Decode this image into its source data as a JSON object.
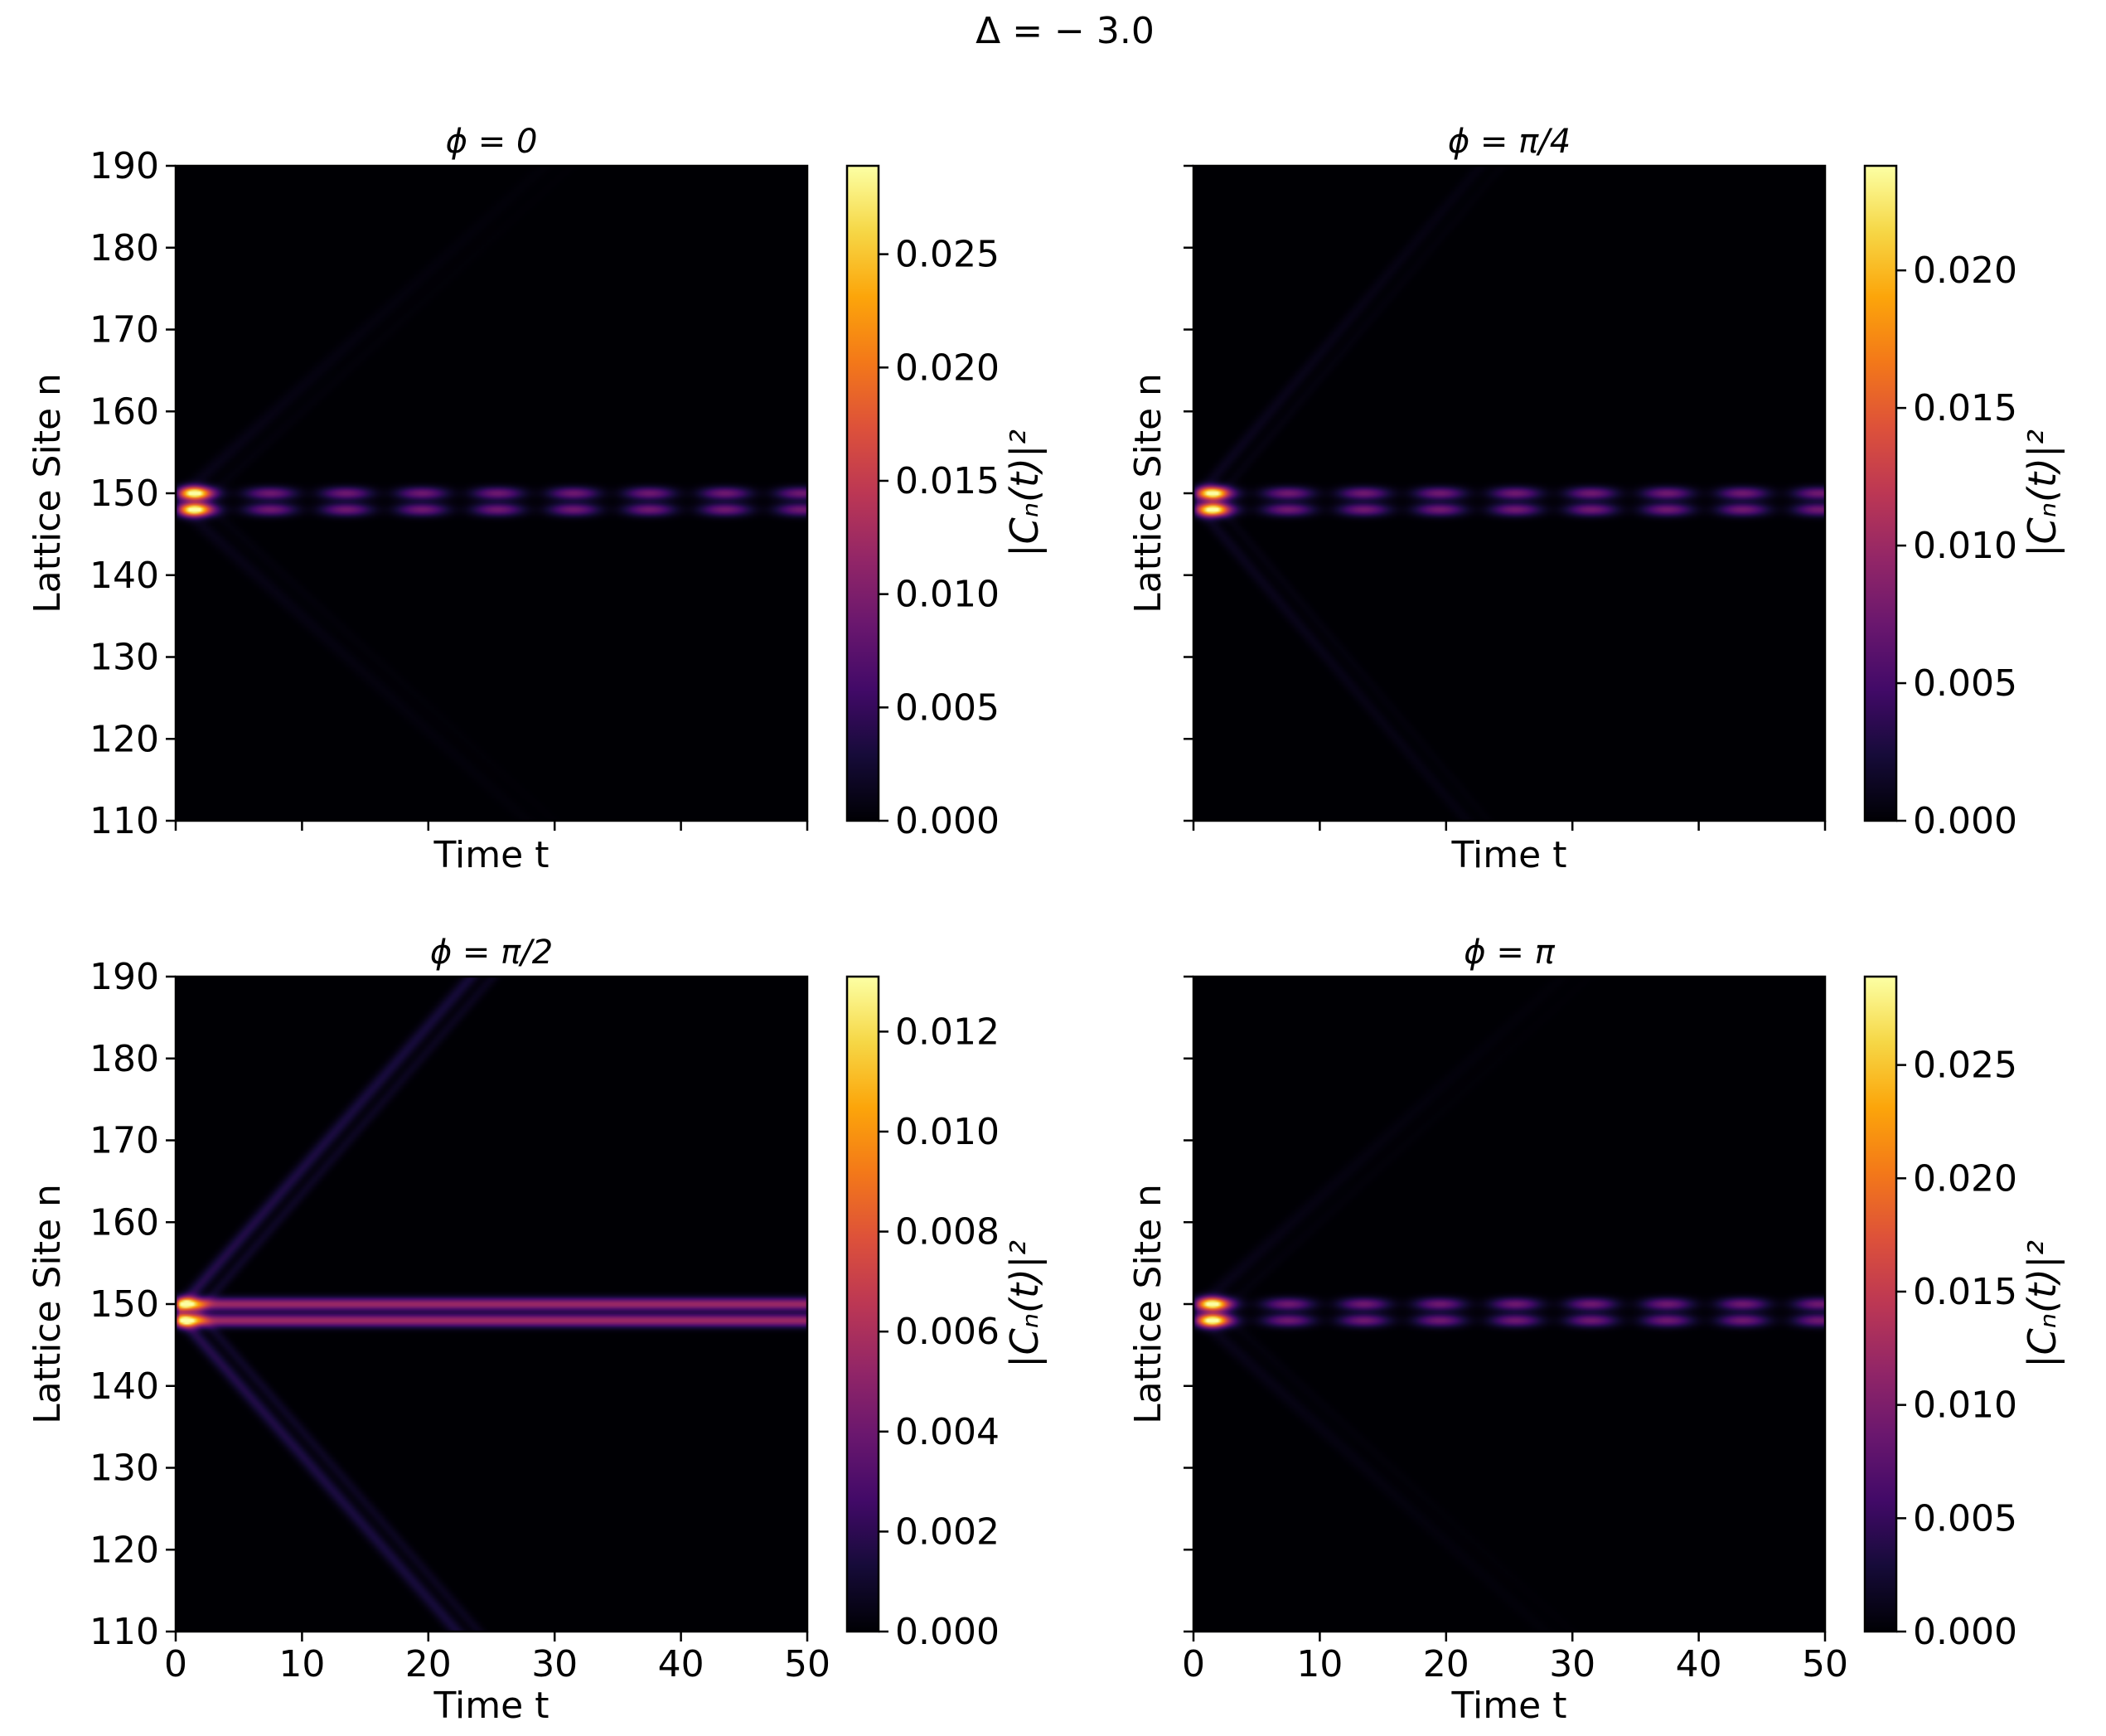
{
  "figure": {
    "suptitle": "Δ = − 3.0"
  },
  "chart_data": [
    {
      "type": "heatmap",
      "title": "ϕ = 0",
      "xlabel": "Time t",
      "ylabel": "Lattice Site n",
      "colorbar_label": "|Cₙ(t)|²",
      "xlim": [
        0,
        50
      ],
      "ylim": [
        110,
        190
      ],
      "xticks": [
        0,
        10,
        20,
        30,
        40,
        50
      ],
      "yticks": [
        110,
        120,
        130,
        140,
        150,
        160,
        170,
        180,
        190
      ],
      "show_xticklabels": false,
      "show_yticklabels": true,
      "vmin": 0,
      "vmax": 0.0289,
      "colorbar_ticks": [
        0.0,
        0.005,
        0.01,
        0.015,
        0.02,
        0.025
      ],
      "colorbar_ticklabels": [
        "0.000",
        "0.005",
        "0.010",
        "0.015",
        "0.020",
        "0.025"
      ],
      "bands": [
        {
          "site": 150,
          "level": 0.009
        },
        {
          "site": 148,
          "level": 0.009
        }
      ],
      "peak": {
        "t": 1.5,
        "level": 0.0285
      },
      "oscillation_period_t": 6,
      "cone": {
        "speed_sites_per_t": 1.4,
        "level": 0.0012,
        "fade_t": 18
      },
      "colorscale": "inferno"
    },
    {
      "type": "heatmap",
      "title": "ϕ = π/4",
      "xlabel": "Time t",
      "ylabel": "Lattice Site n",
      "colorbar_label": "|Cₙ(t)|²",
      "xlim": [
        0,
        50
      ],
      "ylim": [
        110,
        190
      ],
      "xticks": [
        0,
        10,
        20,
        30,
        40,
        50
      ],
      "yticks": [
        110,
        120,
        130,
        140,
        150,
        160,
        170,
        180,
        190
      ],
      "show_xticklabels": false,
      "show_yticklabels": false,
      "vmin": 0,
      "vmax": 0.0238,
      "colorbar_ticks": [
        0.0,
        0.005,
        0.01,
        0.015,
        0.02
      ],
      "colorbar_ticklabels": [
        "0.000",
        "0.005",
        "0.010",
        "0.015",
        "0.020"
      ],
      "bands": [
        {
          "site": 150,
          "level": 0.0075
        },
        {
          "site": 148,
          "level": 0.0075
        }
      ],
      "peak": {
        "t": 1.5,
        "level": 0.023
      },
      "oscillation_period_t": 6,
      "cone": {
        "speed_sites_per_t": 1.8,
        "level": 0.0012,
        "fade_t": 25
      },
      "colorscale": "inferno"
    },
    {
      "type": "heatmap",
      "title": "ϕ = π/2",
      "xlabel": "Time t",
      "ylabel": "Lattice Site n",
      "colorbar_label": "|Cₙ(t)|²",
      "xlim": [
        0,
        50
      ],
      "ylim": [
        110,
        190
      ],
      "xticks": [
        0,
        10,
        20,
        30,
        40,
        50
      ],
      "yticks": [
        110,
        120,
        130,
        140,
        150,
        160,
        170,
        180,
        190
      ],
      "show_xticklabels": true,
      "show_yticklabels": true,
      "vmin": 0,
      "vmax": 0.0131,
      "colorbar_ticks": [
        0.0,
        0.002,
        0.004,
        0.006,
        0.008,
        0.01,
        0.012
      ],
      "colorbar_ticklabels": [
        "0.000",
        "0.002",
        "0.004",
        "0.006",
        "0.008",
        "0.010",
        "0.012"
      ],
      "bands": [
        {
          "site": 150,
          "level": 0.0055
        },
        {
          "site": 148,
          "level": 0.0055
        }
      ],
      "peak": {
        "t": 0.8,
        "level": 0.0125
      },
      "oscillation_period_t": 0,
      "cone": {
        "speed_sites_per_t": 1.75,
        "level": 0.0018,
        "fade_t": 60
      },
      "colorscale": "inferno"
    },
    {
      "type": "heatmap",
      "title": "ϕ = π",
      "xlabel": "Time t",
      "ylabel": "Lattice Site n",
      "colorbar_label": "|Cₙ(t)|²",
      "xlim": [
        0,
        50
      ],
      "ylim": [
        110,
        190
      ],
      "xticks": [
        0,
        10,
        20,
        30,
        40,
        50
      ],
      "yticks": [
        110,
        120,
        130,
        140,
        150,
        160,
        170,
        180,
        190
      ],
      "show_xticklabels": true,
      "show_yticklabels": false,
      "vmin": 0,
      "vmax": 0.0289,
      "colorbar_ticks": [
        0.0,
        0.005,
        0.01,
        0.015,
        0.02,
        0.025
      ],
      "colorbar_ticklabels": [
        "0.000",
        "0.005",
        "0.010",
        "0.015",
        "0.020",
        "0.025"
      ],
      "bands": [
        {
          "site": 150,
          "level": 0.009
        },
        {
          "site": 148,
          "level": 0.009
        }
      ],
      "peak": {
        "t": 1.5,
        "level": 0.0285
      },
      "oscillation_period_t": 6,
      "cone": {
        "speed_sites_per_t": 1.4,
        "level": 0.0012,
        "fade_t": 18
      },
      "colorscale": "inferno"
    }
  ]
}
